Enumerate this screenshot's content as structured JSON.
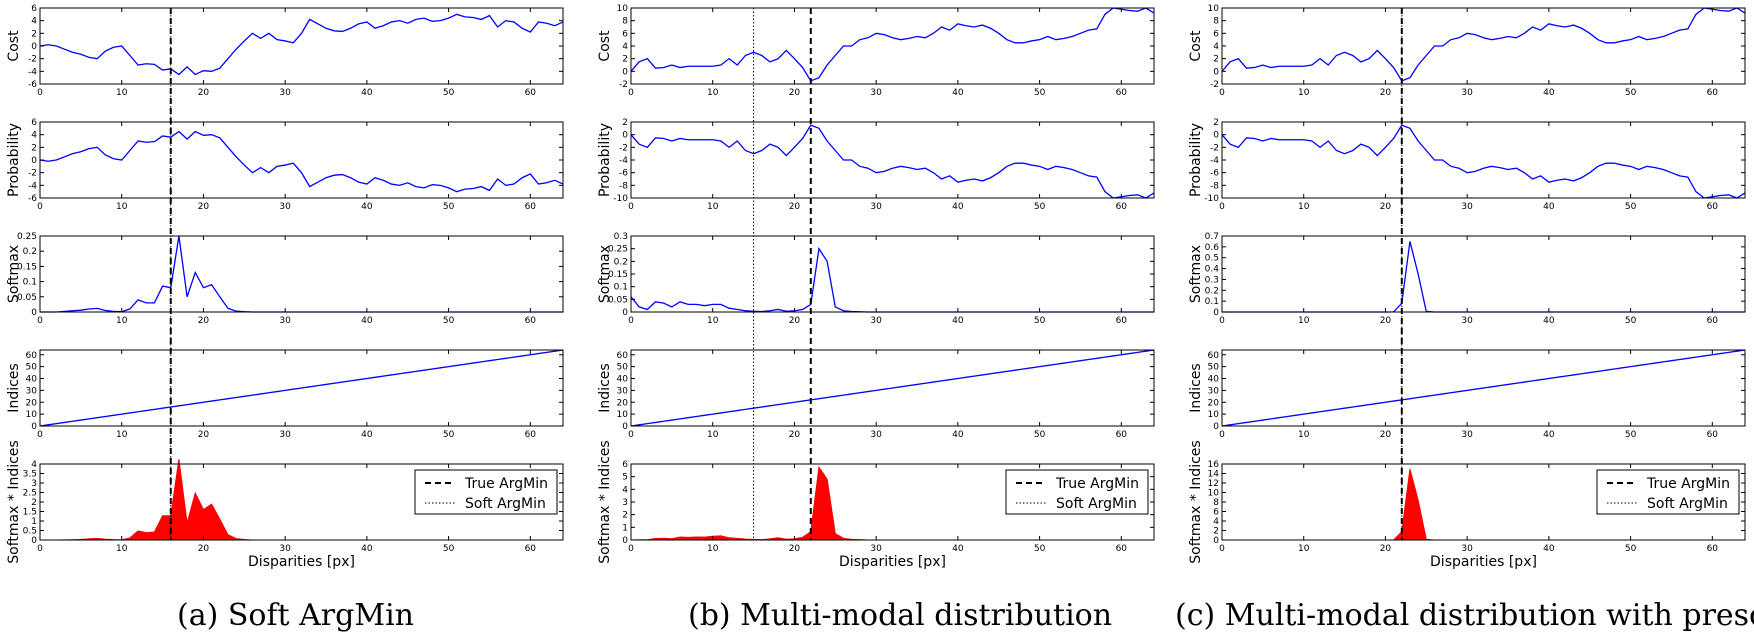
{
  "captions": [
    "(a) Soft ArgMin",
    "(b) Multi-modal distribution",
    "(c) Multi-modal distribution with prescaling"
  ],
  "colors": {
    "line": "#0000ff",
    "fill": "#ff0000",
    "axis": "#000000"
  },
  "chart_data": [
    {
      "type": "line",
      "panel": "a",
      "x_range": [
        0,
        64
      ],
      "x_ticks": [
        0,
        10,
        20,
        30,
        40,
        50,
        60
      ],
      "xlabel": "Disparities [px]",
      "true_argmin": 16,
      "soft_argmin": 16,
      "legend": [
        "True ArgMin",
        "Soft ArgMin"
      ],
      "legend_position": "top-right",
      "cost": [
        0,
        0.2,
        0,
        -0.5,
        -1,
        -1.3,
        -1.8,
        -2,
        -0.8,
        -0.2,
        0,
        -1.5,
        -3,
        -2.8,
        -2.9,
        -3.8,
        -3.6,
        -4.5,
        -3.3,
        -4.5,
        -3.9,
        -4,
        -3.5,
        -2,
        -0.5,
        0.8,
        2,
        1.2,
        2,
        1,
        0.8,
        0.5,
        2,
        4.2,
        3.5,
        2.8,
        2.4,
        2.3,
        2.8,
        3.5,
        3.8,
        2.8,
        3.2,
        3.8,
        4,
        3.6,
        4.2,
        4.4,
        3.9,
        4,
        4.4,
        5,
        4.6,
        4.5,
        4.2,
        4.8,
        3,
        4,
        3.8,
        2.8,
        2.2,
        3.8,
        3.6,
        3.2,
        3.8
      ],
      "softmax": [
        0,
        0,
        0,
        0.002,
        0.004,
        0.006,
        0.01,
        0.012,
        0.005,
        0.002,
        0.001,
        0.01,
        0.04,
        0.03,
        0.03,
        0.085,
        0.08,
        0.25,
        0.05,
        0.13,
        0.08,
        0.09,
        0.05,
        0.012,
        0.003,
        0.001,
        0,
        0,
        0,
        0,
        0,
        0,
        0,
        0,
        0,
        0,
        0,
        0,
        0,
        0,
        0,
        0,
        0,
        0,
        0,
        0,
        0,
        0,
        0,
        0,
        0,
        0,
        0,
        0,
        0,
        0,
        0,
        0,
        0,
        0,
        0,
        0,
        0,
        0,
        0
      ],
      "panels": [
        {
          "ylabel": "Cost",
          "ylim": [
            -6,
            6
          ],
          "yticks": [
            -6,
            -4,
            -2,
            0,
            2,
            4,
            6
          ]
        },
        {
          "ylabel": "Probability",
          "ylim": [
            -6,
            6
          ],
          "yticks": [
            -6,
            -4,
            -2,
            0,
            2,
            4,
            6
          ]
        },
        {
          "ylabel": "Softmax",
          "ylim": [
            0,
            0.25
          ],
          "yticks": [
            0,
            0.05,
            0.1,
            0.15,
            0.2,
            0.25
          ]
        },
        {
          "ylabel": "Indices",
          "ylim": [
            0,
            64
          ],
          "yticks": [
            0,
            10,
            20,
            30,
            40,
            50,
            60
          ]
        },
        {
          "ylabel": "Softmax * Indices",
          "ylim": [
            0,
            4.0
          ],
          "yticks": [
            0,
            0.5,
            1,
            1.5,
            2,
            2.5,
            3,
            3.5,
            4
          ]
        }
      ]
    },
    {
      "type": "line",
      "panel": "b",
      "x_range": [
        0,
        64
      ],
      "x_ticks": [
        0,
        10,
        20,
        30,
        40,
        50,
        60
      ],
      "xlabel": "Disparities [px]",
      "true_argmin": 22,
      "soft_argmin": 15,
      "legend": [
        "True ArgMin",
        "Soft ArgMin"
      ],
      "legend_position": "top-right",
      "cost": [
        0,
        1.5,
        2,
        0.5,
        0.6,
        1,
        0.6,
        0.8,
        0.8,
        0.8,
        0.8,
        1,
        2,
        1,
        2.5,
        3,
        2.5,
        1.5,
        2,
        3.3,
        2,
        0.6,
        -1.5,
        -1,
        1,
        2.5,
        4,
        4,
        5,
        5.3,
        6,
        5.8,
        5.3,
        5,
        5.2,
        5.5,
        5.3,
        6,
        7,
        6.5,
        7.5,
        7.2,
        7,
        7.3,
        6.8,
        6,
        5,
        4.5,
        4.5,
        4.8,
        5,
        5.5,
        5,
        5.2,
        5.5,
        6,
        6.5,
        6.7,
        9,
        10,
        9.8,
        9.6,
        9.5,
        10,
        9.2
      ],
      "softmax": [
        0.06,
        0.02,
        0.01,
        0.04,
        0.035,
        0.02,
        0.04,
        0.03,
        0.03,
        0.025,
        0.03,
        0.03,
        0.015,
        0.01,
        0.005,
        0.003,
        0.002,
        0.005,
        0.01,
        0.003,
        0.005,
        0.01,
        0.03,
        0.25,
        0.2,
        0.02,
        0.005,
        0.002,
        0.001,
        0,
        0,
        0,
        0,
        0,
        0,
        0,
        0,
        0,
        0,
        0,
        0,
        0,
        0,
        0,
        0,
        0,
        0,
        0,
        0,
        0,
        0,
        0,
        0,
        0,
        0,
        0,
        0,
        0,
        0,
        0,
        0,
        0,
        0,
        0,
        0
      ],
      "panels": [
        {
          "ylabel": "Cost",
          "ylim": [
            -2,
            10
          ],
          "yticks": [
            -2,
            0,
            2,
            4,
            6,
            8,
            10
          ]
        },
        {
          "ylabel": "Probability",
          "ylim": [
            -10,
            2
          ],
          "yticks": [
            -10,
            -8,
            -6,
            -4,
            -2,
            0,
            2
          ]
        },
        {
          "ylabel": "Softmax",
          "ylim": [
            0,
            0.3
          ],
          "yticks": [
            0,
            0.05,
            0.1,
            0.15,
            0.2,
            0.25,
            0.3
          ]
        },
        {
          "ylabel": "Indices",
          "ylim": [
            0,
            64
          ],
          "yticks": [
            0,
            10,
            20,
            30,
            40,
            50,
            60
          ]
        },
        {
          "ylabel": "Softmax * Indices",
          "ylim": [
            0,
            6
          ],
          "yticks": [
            0,
            1,
            2,
            3,
            4,
            5,
            6
          ]
        }
      ]
    },
    {
      "type": "line",
      "panel": "c",
      "x_range": [
        0,
        64
      ],
      "x_ticks": [
        0,
        10,
        20,
        30,
        40,
        50,
        60
      ],
      "xlabel": "Disparities [px]",
      "true_argmin": 22,
      "soft_argmin": 22,
      "legend": [
        "True ArgMin",
        "Soft ArgMin"
      ],
      "legend_position": "top-right",
      "cost": [
        0,
        1.5,
        2,
        0.5,
        0.6,
        1,
        0.6,
        0.8,
        0.8,
        0.8,
        0.8,
        1,
        2,
        1,
        2.5,
        3,
        2.5,
        1.5,
        2,
        3.3,
        2,
        0.6,
        -1.5,
        -1,
        1,
        2.5,
        4,
        4,
        5,
        5.3,
        6,
        5.8,
        5.3,
        5,
        5.2,
        5.5,
        5.3,
        6,
        7,
        6.5,
        7.5,
        7.2,
        7,
        7.3,
        6.8,
        6,
        5,
        4.5,
        4.5,
        4.8,
        5,
        5.5,
        5,
        5.2,
        5.5,
        6,
        6.5,
        6.7,
        9,
        10,
        9.8,
        9.6,
        9.5,
        10,
        9.2
      ],
      "softmax": [
        0,
        0,
        0,
        0,
        0,
        0,
        0,
        0,
        0,
        0,
        0,
        0,
        0,
        0,
        0,
        0,
        0,
        0,
        0,
        0,
        0,
        0.001,
        0.08,
        0.65,
        0.35,
        0.005,
        0,
        0,
        0,
        0,
        0,
        0,
        0,
        0,
        0,
        0,
        0,
        0,
        0,
        0,
        0,
        0,
        0,
        0,
        0,
        0,
        0,
        0,
        0,
        0,
        0,
        0,
        0,
        0,
        0,
        0,
        0,
        0,
        0,
        0,
        0,
        0,
        0,
        0,
        0
      ],
      "panels": [
        {
          "ylabel": "Cost",
          "ylim": [
            -2,
            10
          ],
          "yticks": [
            -2,
            0,
            2,
            4,
            6,
            8,
            10
          ]
        },
        {
          "ylabel": "Probability",
          "ylim": [
            -10,
            2
          ],
          "yticks": [
            -10,
            -8,
            -6,
            -4,
            -2,
            0,
            2
          ]
        },
        {
          "ylabel": "Softmax",
          "ylim": [
            0,
            0.7
          ],
          "yticks": [
            0,
            0.1,
            0.2,
            0.3,
            0.4,
            0.5,
            0.6,
            0.7
          ]
        },
        {
          "ylabel": "Indices",
          "ylim": [
            0,
            64
          ],
          "yticks": [
            0,
            10,
            20,
            30,
            40,
            50,
            60
          ]
        },
        {
          "ylabel": "Softmax * Indices",
          "ylim": [
            0,
            16
          ],
          "yticks": [
            0,
            2,
            4,
            6,
            8,
            10,
            12,
            14,
            16
          ]
        }
      ]
    }
  ]
}
